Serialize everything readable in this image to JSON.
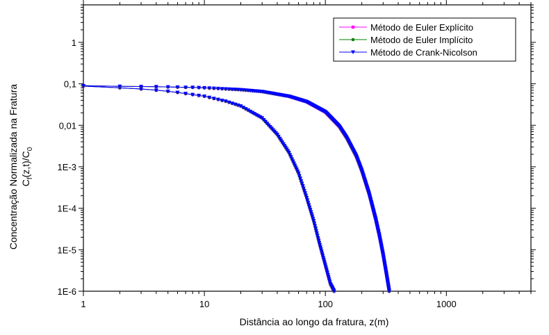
{
  "chart_data": {
    "type": "line",
    "title": "",
    "xlabel": "Distância ao longo da fratura, z(m)",
    "ylabel": {
      "line1": "Concentração Normalizada na Fratura",
      "line2_main": "C",
      "line2_sub1": "f",
      "line2_mid": "(z,t)/C",
      "line2_sub2": "0"
    },
    "x_scale": "log",
    "y_scale": "log",
    "xlim": [
      1,
      5000
    ],
    "ylim": [
      1e-06,
      8
    ],
    "x_ticks": [
      {
        "value": 1,
        "label": "1"
      },
      {
        "value": 10,
        "label": "10"
      },
      {
        "value": 100,
        "label": "100"
      },
      {
        "value": 1000,
        "label": "1000"
      }
    ],
    "y_ticks": [
      {
        "value": 1,
        "label": "1"
      },
      {
        "value": 0.1,
        "label": "0,1"
      },
      {
        "value": 0.01,
        "label": "0,01"
      },
      {
        "value": 0.001,
        "label": "1E-3"
      },
      {
        "value": 0.0001,
        "label": "1E-4"
      },
      {
        "value": 1e-05,
        "label": "1E-5"
      },
      {
        "value": 1e-06,
        "label": "1E-6"
      }
    ],
    "grid": false,
    "legend_position": "top-right",
    "series": [
      {
        "name": "Método de Euler Explícito",
        "color": "#ff00ff",
        "marker": "square"
      },
      {
        "name": "Método de Euler Implícito",
        "color": "#008000",
        "marker": "circle"
      },
      {
        "name": "Método de Crank-Nicolson",
        "color": "#0000ff",
        "marker": "triangle-down"
      }
    ],
    "profiles": [
      {
        "label": "inner curve",
        "x": [
          1,
          2,
          3,
          4,
          5,
          6,
          8,
          10,
          15,
          20,
          30,
          40,
          50,
          60,
          70,
          80,
          90,
          100,
          110,
          118
        ],
        "y": [
          0.088,
          0.08,
          0.075,
          0.07,
          0.066,
          0.062,
          0.055,
          0.05,
          0.038,
          0.029,
          0.015,
          0.006,
          0.0022,
          0.0007,
          0.00018,
          5e-05,
          1.3e-05,
          4.2e-06,
          1.5e-06,
          1e-06
        ]
      },
      {
        "label": "outer curve",
        "x": [
          1,
          2,
          3,
          4,
          5,
          6,
          7,
          8,
          10,
          20,
          30,
          50,
          70,
          100,
          130,
          150,
          180,
          200,
          230,
          260,
          280,
          300,
          320,
          337
        ],
        "y": [
          0.09,
          0.087,
          0.086,
          0.085,
          0.084,
          0.083,
          0.082,
          0.082,
          0.08,
          0.072,
          0.065,
          0.05,
          0.037,
          0.021,
          0.0095,
          0.005,
          0.0018,
          0.0008,
          0.00022,
          5.5e-05,
          2.1e-05,
          7.5e-06,
          2.5e-06,
          1e-06
        ]
      }
    ]
  }
}
